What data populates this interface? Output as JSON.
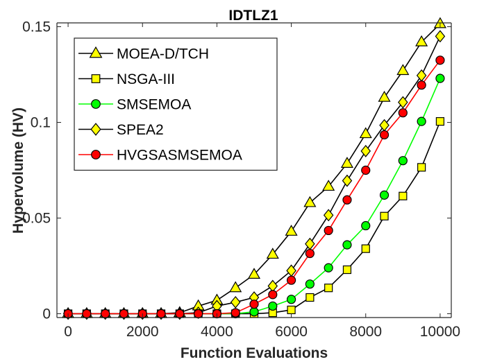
{
  "chart_data": {
    "type": "line",
    "title": "IDTLZ1",
    "xlabel": "Function Evaluations",
    "ylabel": "Hypervolume (HV)",
    "xlim": [
      -300,
      10300
    ],
    "ylim": [
      -0.002,
      0.152
    ],
    "xticks": [
      0,
      2000,
      4000,
      6000,
      8000,
      10000
    ],
    "yticks": [
      0,
      0.05,
      0.1,
      0.15
    ],
    "ytick_labels": [
      "0",
      "0.05",
      "0.1",
      "0.15"
    ],
    "grid": false,
    "legend_position": "top-left",
    "x": [
      0,
      500,
      1000,
      1500,
      2000,
      2500,
      3000,
      3500,
      4000,
      4500,
      5000,
      5500,
      6000,
      6500,
      7000,
      7500,
      8000,
      8500,
      9000,
      9500,
      10000
    ],
    "series": [
      {
        "name": "MOEA-D/TCH",
        "marker": "triangle",
        "line_color": "#000000",
        "marker_fill": "#ffff00",
        "values": [
          0,
          0,
          0,
          0,
          0,
          0,
          0.0005,
          0.004,
          0.007,
          0.0135,
          0.0205,
          0.031,
          0.043,
          0.058,
          0.0665,
          0.0785,
          0.094,
          0.113,
          0.127,
          0.142,
          0.1515
        ]
      },
      {
        "name": "NSGA-III",
        "marker": "square",
        "line_color": "#000000",
        "marker_fill": "#ffff00",
        "values": [
          0,
          0,
          0,
          0,
          0,
          0,
          0,
          0,
          0,
          0,
          0,
          0.0005,
          0.002,
          0.0085,
          0.0135,
          0.023,
          0.034,
          0.051,
          0.0615,
          0.0765,
          0.1005
        ]
      },
      {
        "name": "SMSEMOA",
        "marker": "circle",
        "line_color": "#00ff00",
        "marker_fill": "#00ff00",
        "values": [
          0,
          0,
          0,
          0,
          0,
          0,
          0,
          0,
          0,
          0,
          0.001,
          0.004,
          0.0075,
          0.0155,
          0.024,
          0.036,
          0.046,
          0.062,
          0.08,
          0.1005,
          0.123
        ]
      },
      {
        "name": "SPEA2",
        "marker": "diamond",
        "line_color": "#000000",
        "marker_fill": "#ffff00",
        "values": [
          0,
          0,
          0,
          0,
          0,
          0,
          0,
          0.0005,
          0.004,
          0.006,
          0.0085,
          0.0145,
          0.0225,
          0.0365,
          0.0515,
          0.0695,
          0.085,
          0.0985,
          0.1105,
          0.1245,
          0.145
        ]
      },
      {
        "name": "HVGSASMSEMOA",
        "marker": "circle",
        "line_color": "#ff0000",
        "marker_fill": "#ff0000",
        "values": [
          0,
          0,
          0,
          0,
          0,
          0,
          0,
          0,
          0,
          0.0005,
          0.005,
          0.01,
          0.0175,
          0.0315,
          0.0435,
          0.0595,
          0.075,
          0.0935,
          0.105,
          0.1195,
          0.1325
        ]
      }
    ]
  }
}
